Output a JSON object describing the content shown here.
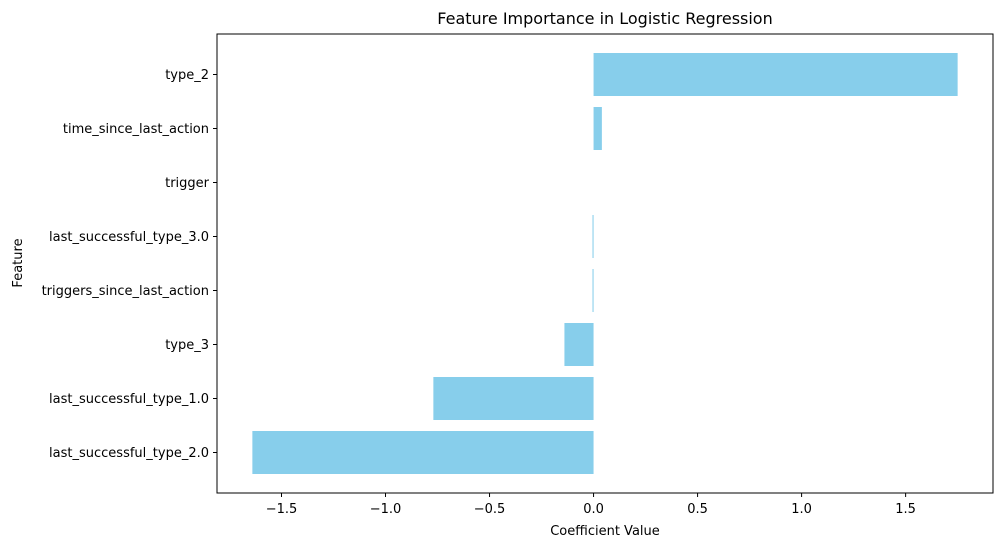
{
  "chart_data": {
    "type": "bar",
    "orientation": "horizontal",
    "title": "Feature Importance in Logistic Regression",
    "xlabel": "Coefficient Value",
    "ylabel": "Feature",
    "categories": [
      "type_2",
      "time_since_last_action",
      "trigger",
      "last_successful_type_3.0",
      "triggers_since_last_action",
      "type_3",
      "last_successful_type_1.0",
      "last_successful_type_2.0"
    ],
    "values": [
      1.75,
      0.04,
      0.0,
      -0.005,
      -0.005,
      -0.14,
      -0.77,
      -1.64
    ],
    "xlim": [
      -1.81,
      1.92
    ],
    "xticks": [
      -1.5,
      -1.0,
      -0.5,
      0.0,
      0.5,
      1.0,
      1.5
    ],
    "xtick_labels": [
      "−1.5",
      "−1.0",
      "−0.5",
      "0.0",
      "0.5",
      "1.0",
      "1.5"
    ],
    "bar_color": "#87CEEB",
    "grid": false
  }
}
